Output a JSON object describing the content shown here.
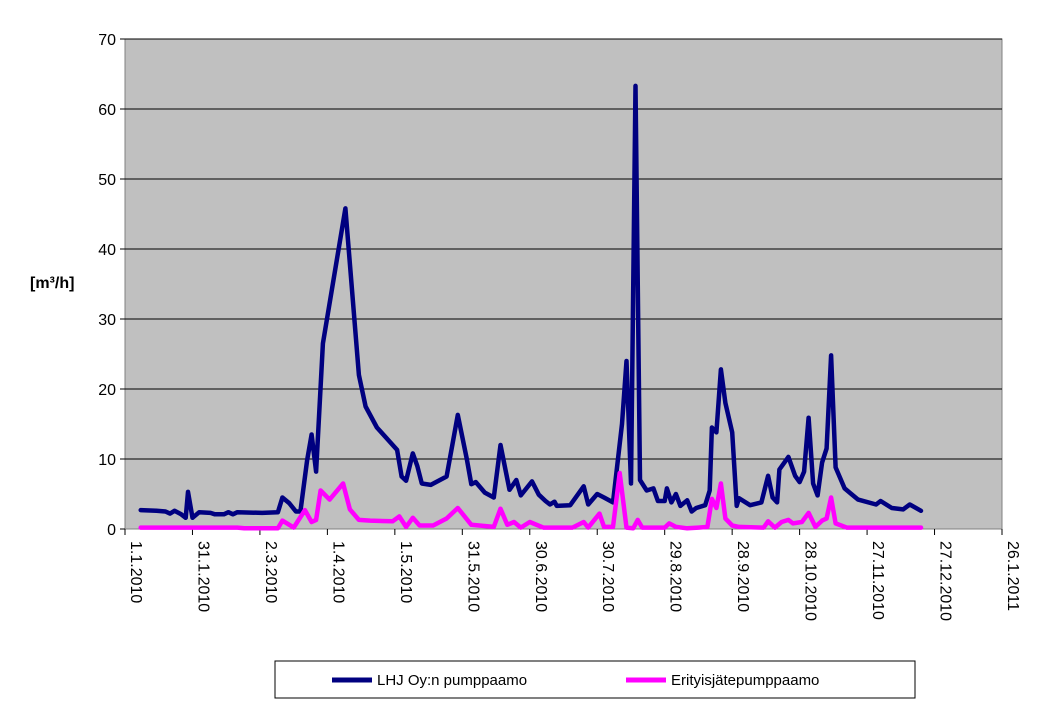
{
  "chart_data": {
    "type": "line",
    "title": "",
    "xlabel": "",
    "ylabel": "[m³/h]",
    "ylim": [
      0,
      70
    ],
    "yticks": [
      "0",
      "10",
      "20",
      "30",
      "40",
      "50",
      "60",
      "70"
    ],
    "xlim": [
      "2010-01-01",
      "2011-01-26"
    ],
    "xticks": [
      {
        "date": "2010-01-01",
        "label": "1.1.2010"
      },
      {
        "date": "2010-01-31",
        "label": "31.1.2010"
      },
      {
        "date": "2010-03-02",
        "label": "2.3.2010"
      },
      {
        "date": "2010-04-01",
        "label": "1.4.2010"
      },
      {
        "date": "2010-05-01",
        "label": "1.5.2010"
      },
      {
        "date": "2010-05-31",
        "label": "31.5.2010"
      },
      {
        "date": "2010-06-30",
        "label": "30.6.2010"
      },
      {
        "date": "2010-07-30",
        "label": "30.7.2010"
      },
      {
        "date": "2010-08-29",
        "label": "29.8.2010"
      },
      {
        "date": "2010-09-28",
        "label": "28.9.2010"
      },
      {
        "date": "2010-10-28",
        "label": "28.10.2010"
      },
      {
        "date": "2010-11-27",
        "label": "27.11.2010"
      },
      {
        "date": "2010-12-27",
        "label": "27.12.2010"
      },
      {
        "date": "2011-01-26",
        "label": "26.1.2011"
      }
    ],
    "grid": true,
    "legend_position": "bottom",
    "plot_background": "#c0c0c0",
    "series": [
      {
        "name": "LHJ Oy:n pumppaamo",
        "color": "#000080",
        "points": [
          [
            "2010-01-08",
            2.7
          ],
          [
            "2010-01-15",
            2.6
          ],
          [
            "2010-01-19",
            2.5
          ],
          [
            "2010-01-21",
            2.2
          ],
          [
            "2010-01-23",
            2.6
          ],
          [
            "2010-01-26",
            2.1
          ],
          [
            "2010-01-28",
            1.6
          ],
          [
            "2010-01-29",
            5.3
          ],
          [
            "2010-01-31",
            1.6
          ],
          [
            "2010-02-03",
            2.4
          ],
          [
            "2010-02-08",
            2.3
          ],
          [
            "2010-02-10",
            2.1
          ],
          [
            "2010-02-14",
            2.1
          ],
          [
            "2010-02-16",
            2.4
          ],
          [
            "2010-02-18",
            2.1
          ],
          [
            "2010-02-20",
            2.4
          ],
          [
            "2010-03-03",
            2.3
          ],
          [
            "2010-03-10",
            2.4
          ],
          [
            "2010-03-12",
            4.5
          ],
          [
            "2010-03-15",
            3.7
          ],
          [
            "2010-03-18",
            2.5
          ],
          [
            "2010-03-20",
            2.5
          ],
          [
            "2010-03-23",
            9.8
          ],
          [
            "2010-03-25",
            13.5
          ],
          [
            "2010-03-27",
            8.2
          ],
          [
            "2010-03-30",
            26.5
          ],
          [
            "2010-04-09",
            45.8
          ],
          [
            "2010-04-15",
            22.0
          ],
          [
            "2010-04-18",
            17.5
          ],
          [
            "2010-04-23",
            14.5
          ],
          [
            "2010-05-02",
            11.3
          ],
          [
            "2010-05-04",
            7.5
          ],
          [
            "2010-05-06",
            6.9
          ],
          [
            "2010-05-09",
            10.8
          ],
          [
            "2010-05-11",
            9.0
          ],
          [
            "2010-05-13",
            6.5
          ],
          [
            "2010-05-17",
            6.3
          ],
          [
            "2010-05-24",
            7.5
          ],
          [
            "2010-05-29",
            16.3
          ],
          [
            "2010-06-02",
            10.0
          ],
          [
            "2010-06-04",
            6.4
          ],
          [
            "2010-06-06",
            6.7
          ],
          [
            "2010-06-10",
            5.2
          ],
          [
            "2010-06-14",
            4.5
          ],
          [
            "2010-06-17",
            12.0
          ],
          [
            "2010-06-21",
            5.6
          ],
          [
            "2010-06-24",
            7.0
          ],
          [
            "2010-06-26",
            4.8
          ],
          [
            "2010-07-01",
            6.8
          ],
          [
            "2010-07-04",
            4.9
          ],
          [
            "2010-07-07",
            4.0
          ],
          [
            "2010-07-09",
            3.5
          ],
          [
            "2010-07-11",
            3.9
          ],
          [
            "2010-07-12",
            3.3
          ],
          [
            "2010-07-18",
            3.4
          ],
          [
            "2010-07-24",
            6.1
          ],
          [
            "2010-07-26",
            3.5
          ],
          [
            "2010-07-30",
            5.0
          ],
          [
            "2010-08-02",
            4.5
          ],
          [
            "2010-08-06",
            3.8
          ],
          [
            "2010-08-10",
            15.0
          ],
          [
            "2010-08-12",
            24.0
          ],
          [
            "2010-08-14",
            6.5
          ],
          [
            "2010-08-16",
            63.3
          ],
          [
            "2010-08-18",
            7.0
          ],
          [
            "2010-08-21",
            5.5
          ],
          [
            "2010-08-24",
            5.8
          ],
          [
            "2010-08-26",
            4.0
          ],
          [
            "2010-08-29",
            4.0
          ],
          [
            "2010-08-30",
            5.8
          ],
          [
            "2010-09-01",
            3.8
          ],
          [
            "2010-09-03",
            5.0
          ],
          [
            "2010-09-05",
            3.3
          ],
          [
            "2010-09-08",
            4.1
          ],
          [
            "2010-09-10",
            2.5
          ],
          [
            "2010-09-12",
            3.0
          ],
          [
            "2010-09-16",
            3.4
          ],
          [
            "2010-09-18",
            5.5
          ],
          [
            "2010-09-19",
            14.5
          ],
          [
            "2010-09-21",
            13.8
          ],
          [
            "2010-09-23",
            22.8
          ],
          [
            "2010-09-25",
            18.0
          ],
          [
            "2010-09-28",
            13.8
          ],
          [
            "2010-09-30",
            3.3
          ],
          [
            "2010-10-01",
            4.4
          ],
          [
            "2010-10-06",
            3.4
          ],
          [
            "2010-10-11",
            3.8
          ],
          [
            "2010-10-14",
            7.6
          ],
          [
            "2010-10-16",
            4.5
          ],
          [
            "2010-10-18",
            3.8
          ],
          [
            "2010-10-19",
            8.5
          ],
          [
            "2010-10-23",
            10.3
          ],
          [
            "2010-10-26",
            7.6
          ],
          [
            "2010-10-28",
            6.7
          ],
          [
            "2010-10-30",
            8.2
          ],
          [
            "2010-11-01",
            15.9
          ],
          [
            "2010-11-03",
            6.5
          ],
          [
            "2010-11-05",
            4.8
          ],
          [
            "2010-11-07",
            9.5
          ],
          [
            "2010-11-09",
            11.5
          ],
          [
            "2010-11-11",
            24.8
          ],
          [
            "2010-11-13",
            8.8
          ],
          [
            "2010-11-17",
            5.8
          ],
          [
            "2010-11-20",
            5.0
          ],
          [
            "2010-11-23",
            4.2
          ],
          [
            "2010-12-01",
            3.5
          ],
          [
            "2010-12-03",
            4.0
          ],
          [
            "2010-12-08",
            3.0
          ],
          [
            "2010-12-13",
            2.8
          ],
          [
            "2010-12-16",
            3.5
          ],
          [
            "2010-12-21",
            2.6
          ]
        ]
      },
      {
        "name": "Erityisjätepumppaamo",
        "color": "#ff00ff",
        "points": [
          [
            "2010-01-08",
            0.2
          ],
          [
            "2010-02-20",
            0.2
          ],
          [
            "2010-02-23",
            0.1
          ],
          [
            "2010-03-10",
            0.1
          ],
          [
            "2010-03-12",
            1.2
          ],
          [
            "2010-03-17",
            0.2
          ],
          [
            "2010-03-22",
            2.7
          ],
          [
            "2010-03-25",
            1.0
          ],
          [
            "2010-03-27",
            1.3
          ],
          [
            "2010-03-29",
            5.5
          ],
          [
            "2010-04-02",
            4.2
          ],
          [
            "2010-04-08",
            6.5
          ],
          [
            "2010-04-11",
            2.8
          ],
          [
            "2010-04-15",
            1.3
          ],
          [
            "2010-04-20",
            1.2
          ],
          [
            "2010-04-30",
            1.1
          ],
          [
            "2010-05-03",
            1.8
          ],
          [
            "2010-05-06",
            0.3
          ],
          [
            "2010-05-09",
            1.6
          ],
          [
            "2010-05-12",
            0.5
          ],
          [
            "2010-05-18",
            0.5
          ],
          [
            "2010-05-24",
            1.5
          ],
          [
            "2010-05-29",
            3.0
          ],
          [
            "2010-06-04",
            0.6
          ],
          [
            "2010-06-14",
            0.3
          ],
          [
            "2010-06-17",
            2.9
          ],
          [
            "2010-06-20",
            0.6
          ],
          [
            "2010-06-23",
            1.0
          ],
          [
            "2010-06-26",
            0.2
          ],
          [
            "2010-06-30",
            1.0
          ],
          [
            "2010-07-06",
            0.2
          ],
          [
            "2010-07-19",
            0.2
          ],
          [
            "2010-07-24",
            1.0
          ],
          [
            "2010-07-26",
            0.2
          ],
          [
            "2010-07-31",
            2.2
          ],
          [
            "2010-08-02",
            0.3
          ],
          [
            "2010-08-06",
            0.3
          ],
          [
            "2010-08-09",
            8.0
          ],
          [
            "2010-08-12",
            0.2
          ],
          [
            "2010-08-15",
            0.1
          ],
          [
            "2010-08-17",
            1.3
          ],
          [
            "2010-08-19",
            0.2
          ],
          [
            "2010-08-29",
            0.2
          ],
          [
            "2010-08-31",
            0.8
          ],
          [
            "2010-09-03",
            0.3
          ],
          [
            "2010-09-08",
            0.1
          ],
          [
            "2010-09-13",
            0.2
          ],
          [
            "2010-09-17",
            0.3
          ],
          [
            "2010-09-19",
            4.3
          ],
          [
            "2010-09-21",
            3.0
          ],
          [
            "2010-09-23",
            6.5
          ],
          [
            "2010-09-25",
            1.5
          ],
          [
            "2010-09-28",
            0.5
          ],
          [
            "2010-10-01",
            0.3
          ],
          [
            "2010-10-12",
            0.2
          ],
          [
            "2010-10-14",
            1.1
          ],
          [
            "2010-10-17",
            0.2
          ],
          [
            "2010-10-20",
            1.0
          ],
          [
            "2010-10-23",
            1.3
          ],
          [
            "2010-10-25",
            0.8
          ],
          [
            "2010-10-29",
            1.0
          ],
          [
            "2010-11-01",
            2.3
          ],
          [
            "2010-11-04",
            0.3
          ],
          [
            "2010-11-07",
            1.2
          ],
          [
            "2010-11-09",
            1.5
          ],
          [
            "2010-11-11",
            4.5
          ],
          [
            "2010-11-13",
            0.8
          ],
          [
            "2010-11-18",
            0.2
          ],
          [
            "2010-12-21",
            0.2
          ]
        ]
      }
    ]
  }
}
